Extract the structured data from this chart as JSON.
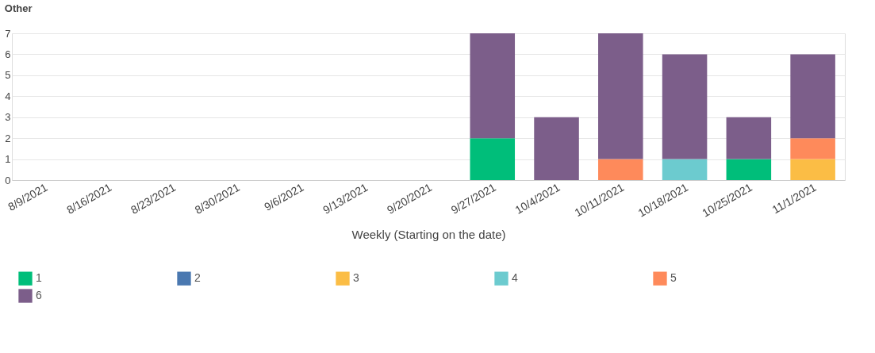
{
  "chart_data": {
    "type": "bar",
    "title": "Other",
    "xlabel": "Weekly (Starting on the date)",
    "categories": [
      "8/9/2021",
      "8/16/2021",
      "8/23/2021",
      "8/30/2021",
      "9/6/2021",
      "9/13/2021",
      "9/20/2021",
      "9/27/2021",
      "10/4/2021",
      "10/11/2021",
      "10/18/2021",
      "10/25/2021",
      "11/1/2021"
    ],
    "stacked": true,
    "ylim": [
      0,
      7
    ],
    "yticks": [
      0,
      1,
      2,
      3,
      4,
      5,
      6,
      7
    ],
    "grid": "y",
    "legend": "bottom",
    "series": [
      {
        "name": "1",
        "color": "#00be7a",
        "values": [
          null,
          null,
          null,
          null,
          null,
          null,
          null,
          2,
          null,
          null,
          null,
          1,
          null
        ]
      },
      {
        "name": "2",
        "color": "#4a78b0",
        "values": [
          null,
          null,
          null,
          null,
          null,
          null,
          null,
          null,
          null,
          null,
          null,
          null,
          null
        ]
      },
      {
        "name": "3",
        "color": "#fbbd45",
        "values": [
          null,
          null,
          null,
          null,
          null,
          null,
          null,
          null,
          null,
          null,
          null,
          null,
          1
        ]
      },
      {
        "name": "4",
        "color": "#6ccbcf",
        "values": [
          null,
          null,
          null,
          null,
          null,
          null,
          null,
          null,
          null,
          null,
          1,
          null,
          null
        ]
      },
      {
        "name": "5",
        "color": "#fe8a5b",
        "values": [
          null,
          null,
          null,
          null,
          null,
          null,
          null,
          null,
          null,
          1,
          null,
          null,
          1
        ]
      },
      {
        "name": "6",
        "color": "#7c5e8a",
        "values": [
          null,
          null,
          null,
          null,
          null,
          null,
          null,
          5,
          3,
          6,
          5,
          2,
          4
        ]
      }
    ]
  }
}
